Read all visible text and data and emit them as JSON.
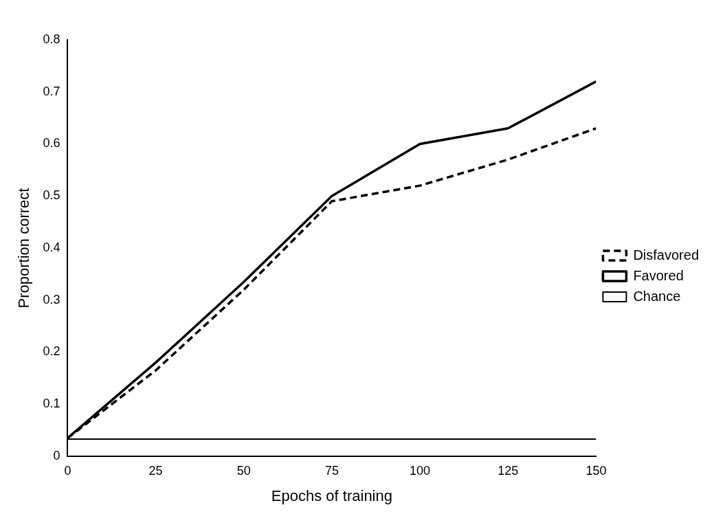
{
  "chart_data": {
    "type": "line",
    "xlabel": "Epochs of training",
    "ylabel": "Proportion correct",
    "x": [
      0,
      25,
      50,
      75,
      100,
      125,
      150
    ],
    "xlim": [
      0,
      150
    ],
    "xticks": [
      0,
      25,
      50,
      75,
      100,
      125,
      150
    ],
    "ylim": [
      0,
      0.8
    ],
    "yticks": [
      0,
      0.1,
      0.2,
      0.3,
      0.4,
      0.5,
      0.6,
      0.7,
      0.8
    ],
    "series": [
      {
        "name": "Disfavored",
        "color": "#000000",
        "line_style": "dashed",
        "values": [
          0.035,
          0.165,
          0.32,
          0.49,
          0.52,
          0.57,
          0.63
        ]
      },
      {
        "name": "Favored",
        "color": "#000000",
        "line_style": "solid",
        "values": [
          0.035,
          0.18,
          0.335,
          0.5,
          0.6,
          0.63,
          0.72
        ]
      },
      {
        "name": "Chance",
        "color": "#000000",
        "line_style": "solid",
        "values": [
          0.033,
          0.033,
          0.033,
          0.033,
          0.033,
          0.033,
          0.033
        ]
      }
    ],
    "grid": false,
    "legend": "right",
    "marker": "none"
  }
}
